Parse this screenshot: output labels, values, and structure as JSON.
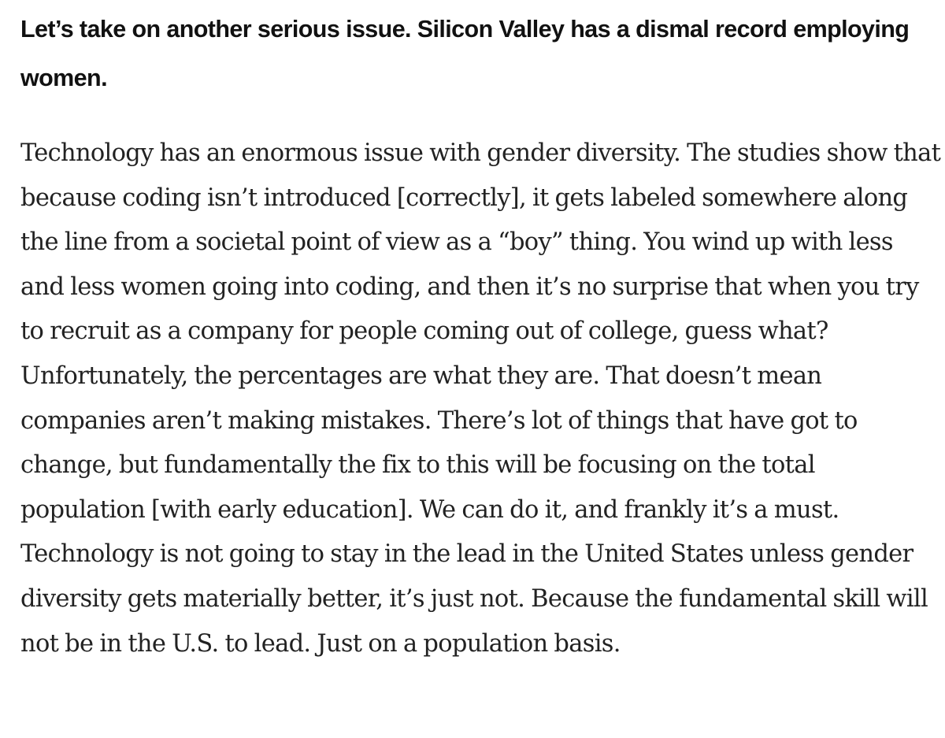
{
  "article": {
    "question": "Let’s take on another serious issue. Silicon Valley has a dismal record employing women.",
    "answer": "Technology has an enormous issue with gender diversity. The studies show that because coding isn’t introduced [correctly], it gets labeled somewhere along the line from a societal point of view as a “boy” thing. You wind up with less and less women going into coding, and then it’s no surprise that when you try to recruit as a company for people coming out of college, guess what? Unfortunately, the percentages are what they are. That doesn’t mean companies aren’t making mistakes. There’s lot of things that have got to change, but fundamentally the fix to this will be focusing on the total population [with early education]. We can do it, and frankly it’s a must. Technology is not going to stay in the lead in the United States unless gender diversity gets materially better, it’s just not. Because the fundamental skill will not be in the U.S. to lead. Just on a population basis."
  }
}
